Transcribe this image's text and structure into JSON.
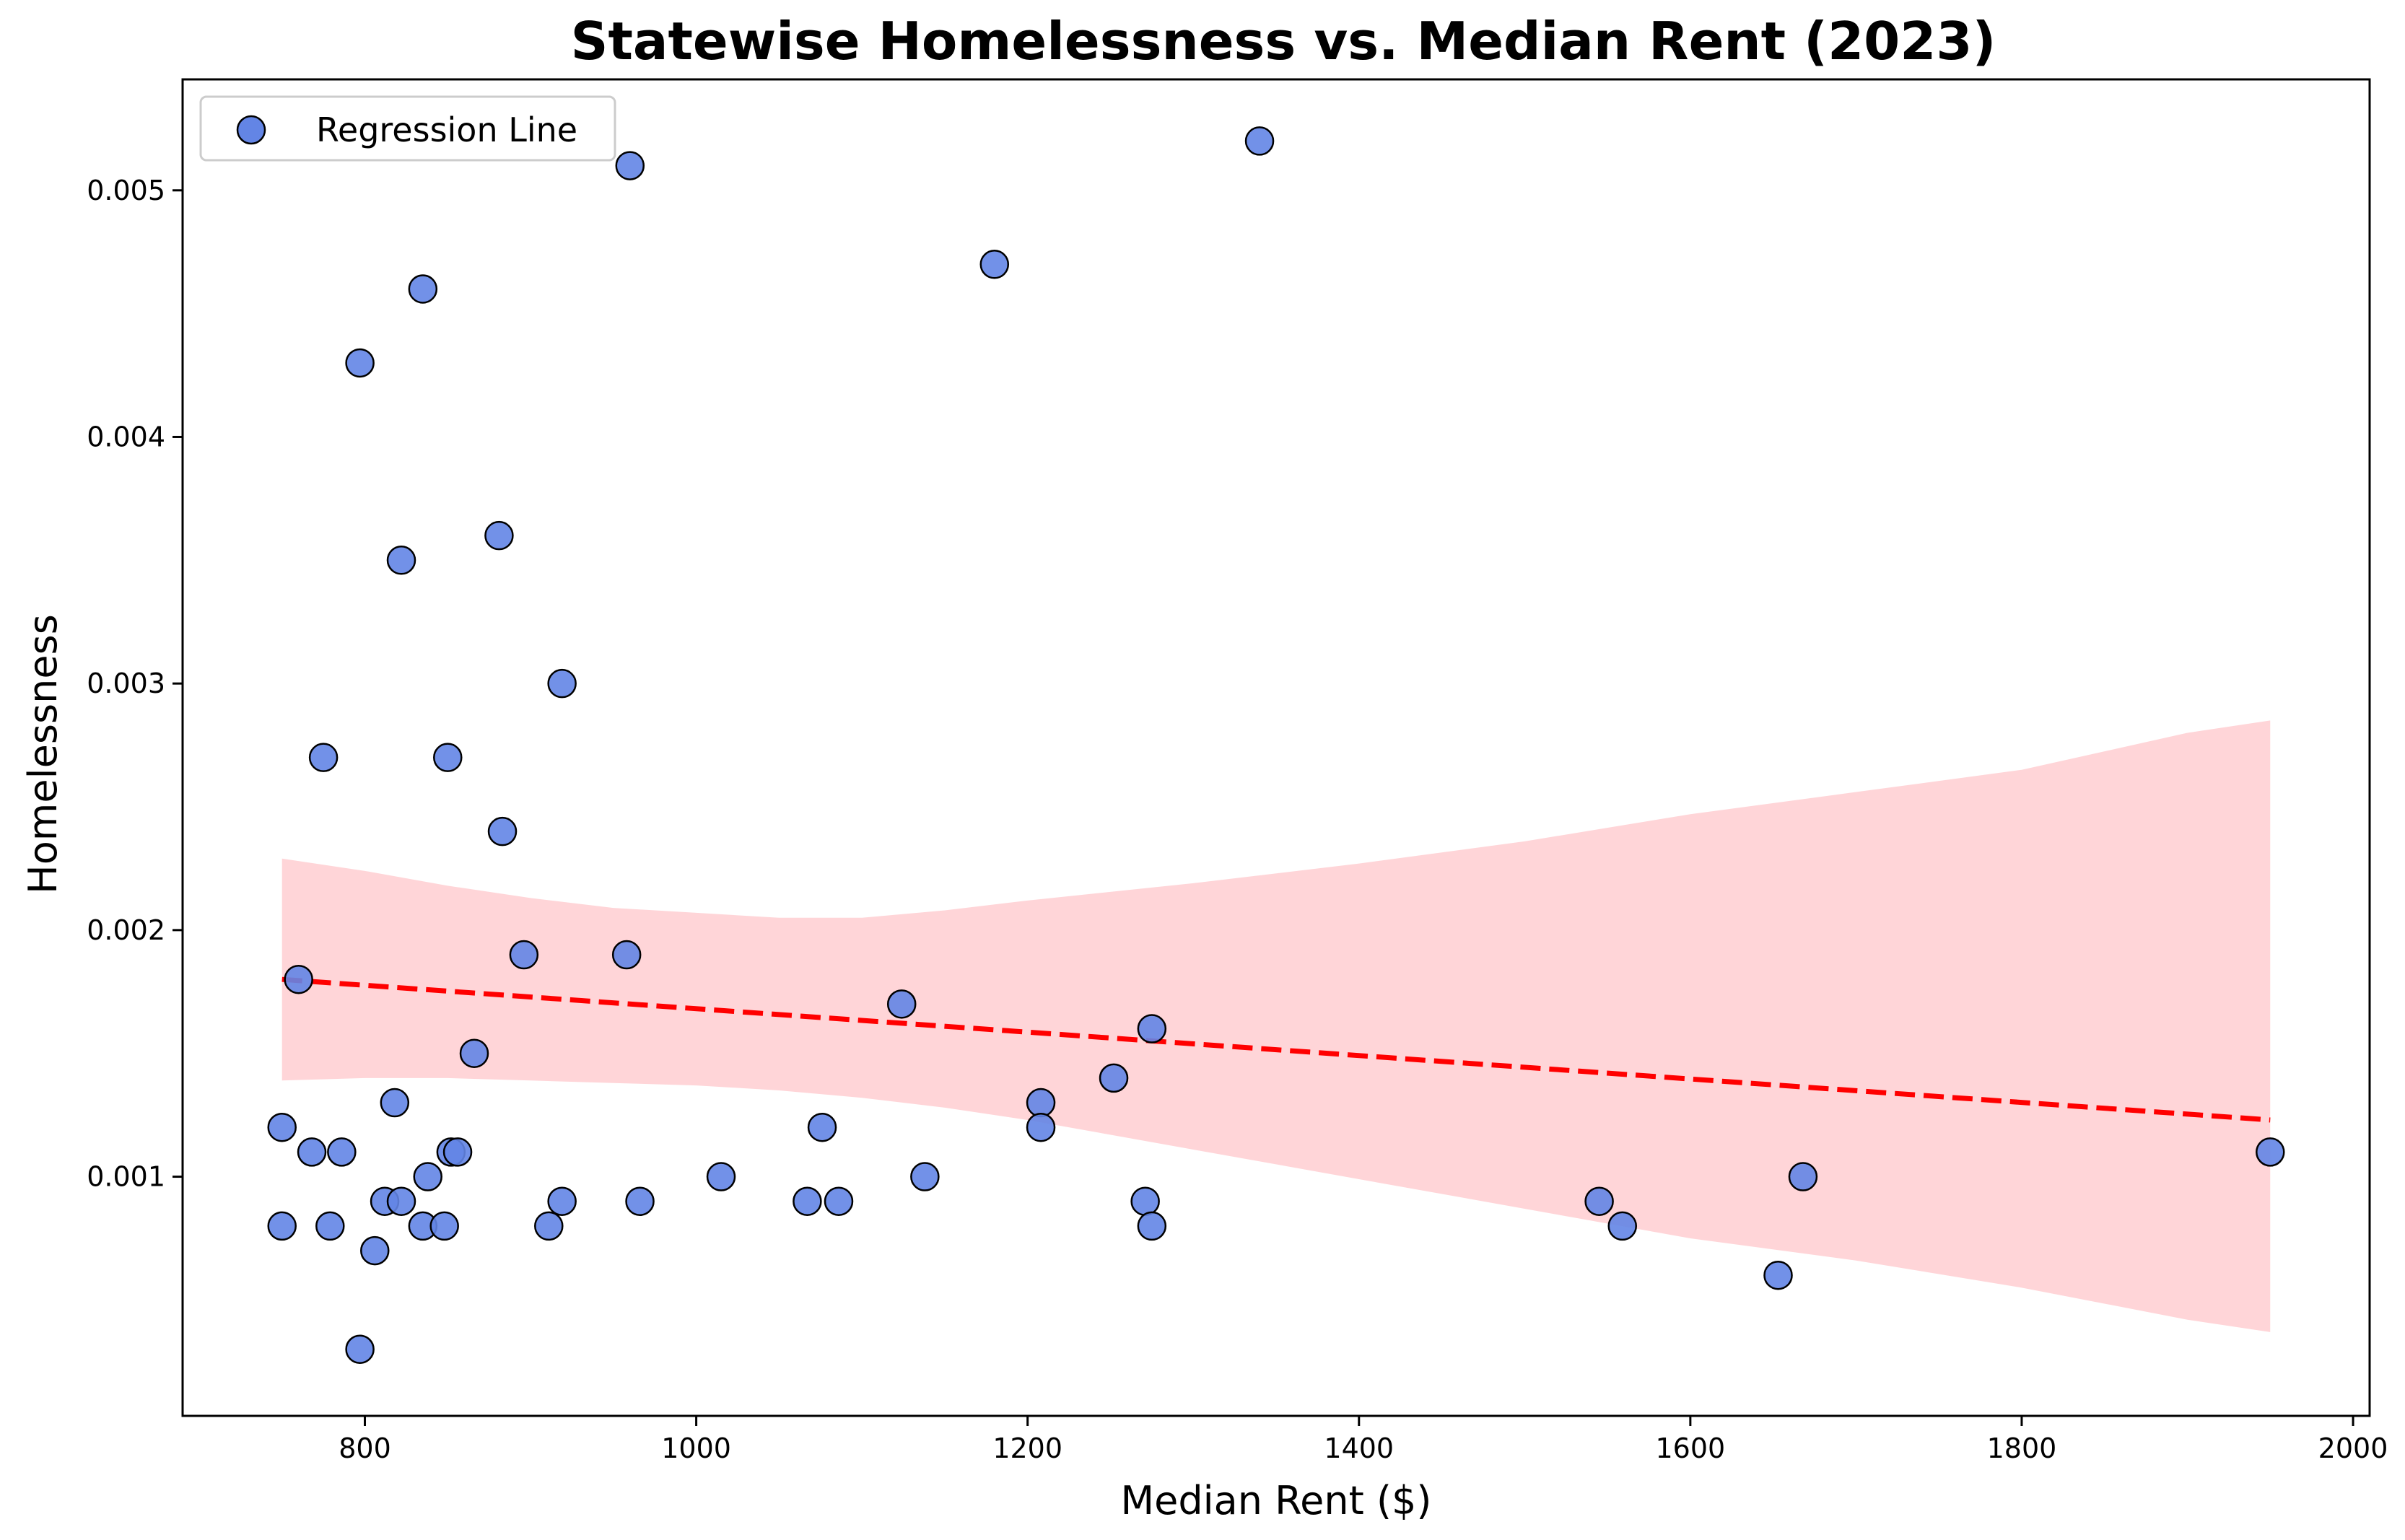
{
  "chart_data": {
    "type": "scatter",
    "title": "Statewise Homelessness vs. Median Rent (2023)",
    "xlabel": "Median Rent ($)",
    "ylabel": "Homelessness",
    "xlim": [
      690,
      2010
    ],
    "ylim": [
      3e-05,
      0.00545
    ],
    "xticks": [
      800,
      1000,
      1200,
      1400,
      1600,
      1800,
      2000
    ],
    "yticks": [
      0.001,
      0.002,
      0.003,
      0.004,
      0.005
    ],
    "xtick_labels": [
      "800",
      "1000",
      "1200",
      "1400",
      "1600",
      "1800",
      "2000"
    ],
    "ytick_labels": [
      "0.001",
      "0.002",
      "0.003",
      "0.004",
      "0.005"
    ],
    "grid": false,
    "legend": {
      "position": "top-left",
      "entries": [
        "Regression Line"
      ]
    },
    "colors": {
      "points": "#6385e5",
      "point_edge": "#000000",
      "regression_line": "#ff0000",
      "confidence_band": "#ffb3b8"
    },
    "series": [
      {
        "type": "scatter",
        "points": [
          {
            "x": 750,
            "y": 0.0012
          },
          {
            "x": 750,
            "y": 0.0008
          },
          {
            "x": 760,
            "y": 0.0018
          },
          {
            "x": 768,
            "y": 0.0011
          },
          {
            "x": 775,
            "y": 0.0027
          },
          {
            "x": 779,
            "y": 0.0008
          },
          {
            "x": 786,
            "y": 0.0011
          },
          {
            "x": 797,
            "y": 0.0043
          },
          {
            "x": 797,
            "y": 0.0003
          },
          {
            "x": 806,
            "y": 0.0007
          },
          {
            "x": 812,
            "y": 0.0009
          },
          {
            "x": 818,
            "y": 0.0013
          },
          {
            "x": 822,
            "y": 0.0035
          },
          {
            "x": 822,
            "y": 0.0009
          },
          {
            "x": 835,
            "y": 0.0046
          },
          {
            "x": 835,
            "y": 0.0008
          },
          {
            "x": 838,
            "y": 0.001
          },
          {
            "x": 848,
            "y": 0.0008
          },
          {
            "x": 850,
            "y": 0.0027
          },
          {
            "x": 852,
            "y": 0.0011
          },
          {
            "x": 856,
            "y": 0.0011
          },
          {
            "x": 866,
            "y": 0.0015
          },
          {
            "x": 881,
            "y": 0.0036
          },
          {
            "x": 883,
            "y": 0.0024
          },
          {
            "x": 896,
            "y": 0.0019
          },
          {
            "x": 911,
            "y": 0.0008
          },
          {
            "x": 919,
            "y": 0.003
          },
          {
            "x": 919,
            "y": 0.0009
          },
          {
            "x": 958,
            "y": 0.0019
          },
          {
            "x": 960,
            "y": 0.0051
          },
          {
            "x": 966,
            "y": 0.0009
          },
          {
            "x": 1015,
            "y": 0.001
          },
          {
            "x": 1067,
            "y": 0.0009
          },
          {
            "x": 1076,
            "y": 0.0012
          },
          {
            "x": 1086,
            "y": 0.0009
          },
          {
            "x": 1124,
            "y": 0.0017
          },
          {
            "x": 1138,
            "y": 0.001
          },
          {
            "x": 1180,
            "y": 0.0047
          },
          {
            "x": 1208,
            "y": 0.0013
          },
          {
            "x": 1208,
            "y": 0.0012
          },
          {
            "x": 1252,
            "y": 0.0014
          },
          {
            "x": 1271,
            "y": 0.0009
          },
          {
            "x": 1275,
            "y": 0.0016
          },
          {
            "x": 1275,
            "y": 0.0008
          },
          {
            "x": 1340,
            "y": 0.0052
          },
          {
            "x": 1545,
            "y": 0.0009
          },
          {
            "x": 1559,
            "y": 0.0008
          },
          {
            "x": 1653,
            "y": 0.0006
          },
          {
            "x": 1668,
            "y": 0.001
          },
          {
            "x": 1950,
            "y": 0.0011
          }
        ]
      },
      {
        "type": "line",
        "style": "dashed",
        "points": [
          {
            "x": 750,
            "y": 0.0018
          },
          {
            "x": 1950,
            "y": 0.00123
          }
        ]
      },
      {
        "type": "area",
        "upper": [
          {
            "x": 750,
            "y": 0.00229
          },
          {
            "x": 800,
            "y": 0.00224
          },
          {
            "x": 850,
            "y": 0.00218
          },
          {
            "x": 900,
            "y": 0.00213
          },
          {
            "x": 950,
            "y": 0.00209
          },
          {
            "x": 1000,
            "y": 0.00207
          },
          {
            "x": 1050,
            "y": 0.00205
          },
          {
            "x": 1100,
            "y": 0.00205
          },
          {
            "x": 1150,
            "y": 0.00208
          },
          {
            "x": 1200,
            "y": 0.00212
          },
          {
            "x": 1300,
            "y": 0.00219
          },
          {
            "x": 1400,
            "y": 0.00227
          },
          {
            "x": 1500,
            "y": 0.00236
          },
          {
            "x": 1600,
            "y": 0.00247
          },
          {
            "x": 1700,
            "y": 0.00256
          },
          {
            "x": 1800,
            "y": 0.00265
          },
          {
            "x": 1900,
            "y": 0.0028
          },
          {
            "x": 1950,
            "y": 0.00285
          }
        ],
        "lower": [
          {
            "x": 750,
            "y": 0.00139
          },
          {
            "x": 800,
            "y": 0.0014
          },
          {
            "x": 850,
            "y": 0.0014
          },
          {
            "x": 900,
            "y": 0.00139
          },
          {
            "x": 950,
            "y": 0.00138
          },
          {
            "x": 1000,
            "y": 0.00137
          },
          {
            "x": 1050,
            "y": 0.00135
          },
          {
            "x": 1100,
            "y": 0.00132
          },
          {
            "x": 1150,
            "y": 0.00128
          },
          {
            "x": 1200,
            "y": 0.00123
          },
          {
            "x": 1300,
            "y": 0.00111
          },
          {
            "x": 1400,
            "y": 0.00099
          },
          {
            "x": 1500,
            "y": 0.00087
          },
          {
            "x": 1600,
            "y": 0.00075
          },
          {
            "x": 1700,
            "y": 0.00066
          },
          {
            "x": 1800,
            "y": 0.00055
          },
          {
            "x": 1900,
            "y": 0.00042
          },
          {
            "x": 1950,
            "y": 0.00037
          }
        ]
      }
    ]
  }
}
